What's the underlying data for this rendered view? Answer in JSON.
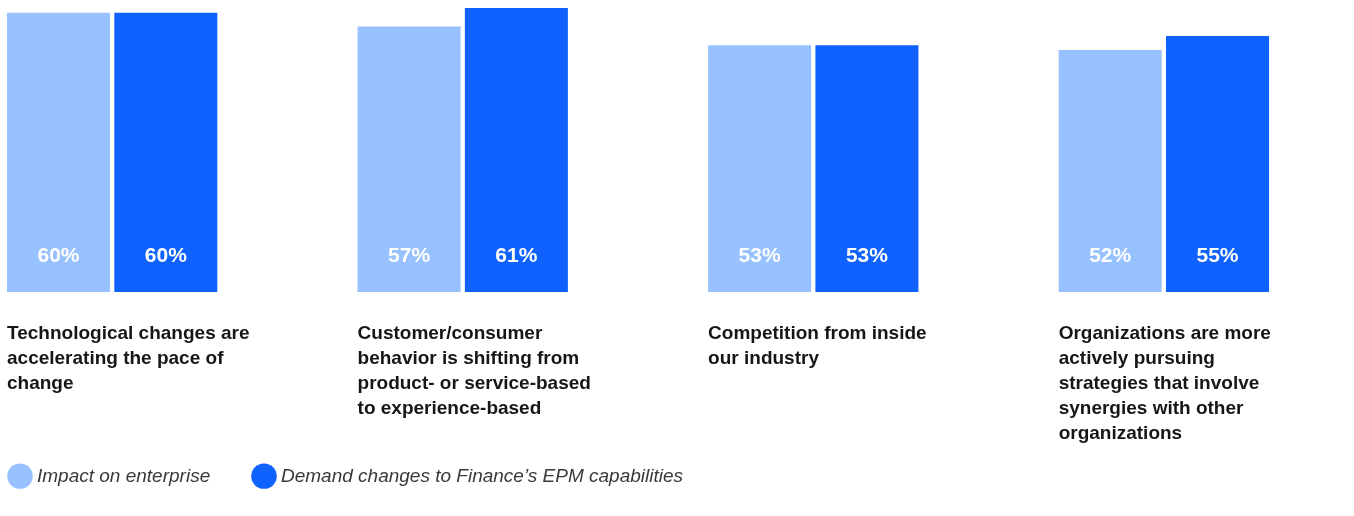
{
  "chart_data": {
    "type": "bar",
    "categories": [
      "Technological changes are accelerating the pace of change",
      "Customer/consumer behavior is shifting from product- or service-based to experience-based",
      "Competition from inside our industry",
      "Organizations are more actively pursuing strategies that involve synergies with other organizations"
    ],
    "series": [
      {
        "name": "Impact on enterprise",
        "color": "#97c1ff",
        "values": [
          60,
          57,
          53,
          52
        ],
        "value_labels": [
          "60%",
          "57%",
          "53%",
          "52%"
        ]
      },
      {
        "name": "Demand changes to Finance’s EPM capabilities",
        "color": "#0f62fe",
        "values": [
          60,
          61,
          53,
          55
        ],
        "value_labels": [
          "60%",
          "61%",
          "53%",
          "55%"
        ]
      }
    ],
    "legend": "bottom left"
  }
}
